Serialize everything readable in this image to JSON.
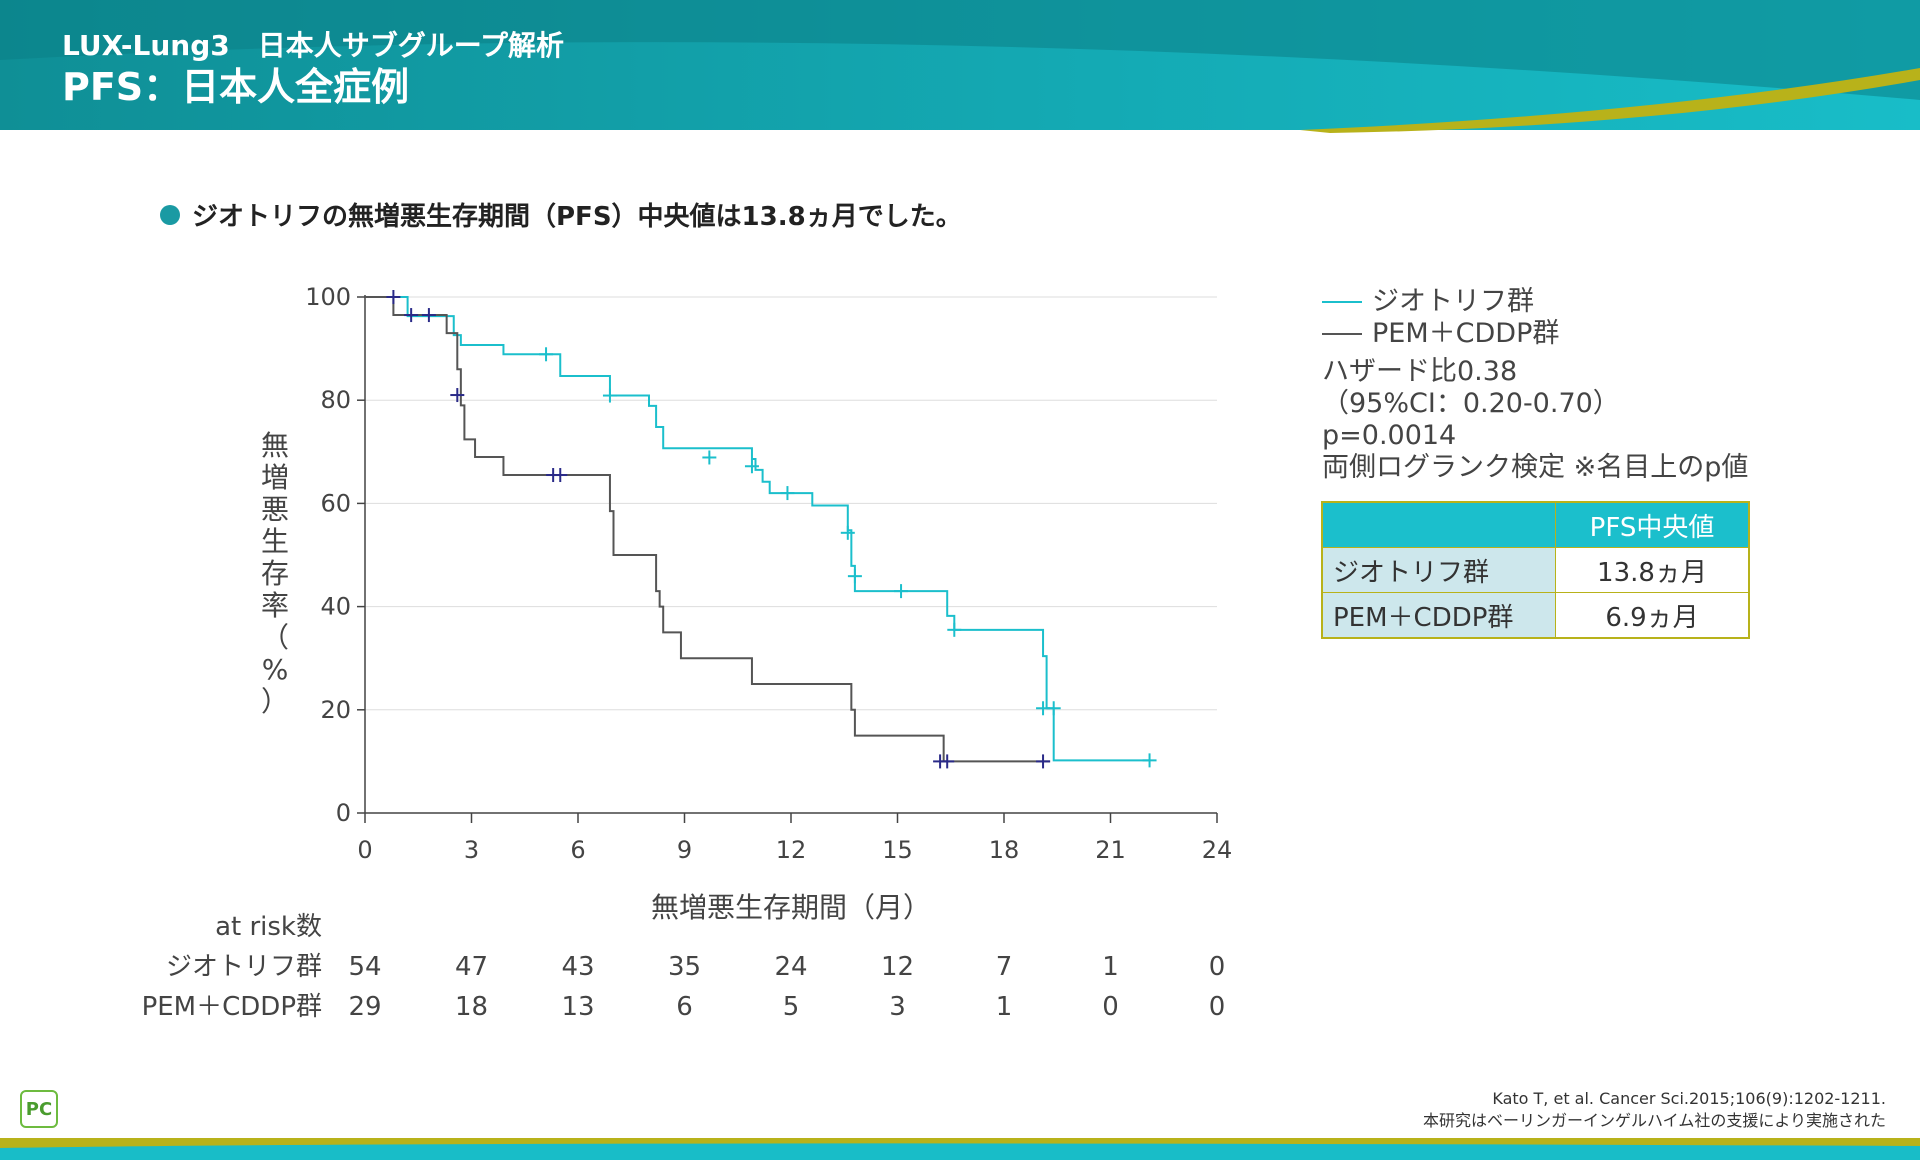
{
  "header": {
    "subtitle": "LUX-Lung3　日本人サブグループ解析",
    "title": "PFS：日本人全症例"
  },
  "bullet": "ジオトリフの無増悪生存期間（PFS）中央値は13.8ヵ月でした。",
  "colors": {
    "afatinib": "#1bbfcc",
    "pem": "#555555",
    "censor_pem": "#2a2a88",
    "accent": "#1a9aa3",
    "olive": "#b8b21a"
  },
  "chart_data": {
    "type": "line",
    "xlabel": "無増悪生存期間（月）",
    "ylabel": "無増悪生存率（%）",
    "xlim": [
      0,
      24
    ],
    "ylim": [
      0,
      100
    ],
    "x_ticks": [
      "0",
      "3",
      "6",
      "9",
      "12",
      "15",
      "18",
      "21",
      "24"
    ],
    "y_ticks": [
      "0",
      "20",
      "40",
      "60",
      "80",
      "100"
    ],
    "grid": "horizontal",
    "series": [
      {
        "name": "ジオトリフ群",
        "steps": [
          [
            0,
            100
          ],
          [
            1.2,
            96.3
          ],
          [
            2.5,
            92.6
          ],
          [
            2.7,
            90.7
          ],
          [
            3.9,
            88.9
          ],
          [
            5.5,
            84.7
          ],
          [
            6.9,
            80.9
          ],
          [
            8.0,
            78.9
          ],
          [
            8.2,
            74.8
          ],
          [
            8.4,
            70.7
          ],
          [
            10.9,
            68.6
          ],
          [
            11.0,
            66.5
          ],
          [
            11.2,
            64.2
          ],
          [
            11.4,
            62.0
          ],
          [
            12.6,
            59.6
          ],
          [
            13.6,
            54.8
          ],
          [
            13.7,
            47.9
          ],
          [
            13.8,
            43.0
          ],
          [
            16.4,
            38.2
          ],
          [
            16.6,
            35.5
          ],
          [
            19.1,
            30.4
          ],
          [
            19.2,
            20.3
          ],
          [
            19.4,
            10.2
          ],
          [
            22.1,
            10.2
          ]
        ],
        "censor": [
          [
            5.1,
            88.9
          ],
          [
            6.9,
            80.9
          ],
          [
            9.7,
            68.9
          ],
          [
            10.9,
            67.2
          ],
          [
            11.9,
            62.0
          ],
          [
            13.6,
            54.3
          ],
          [
            13.8,
            45.9
          ],
          [
            15.1,
            43.0
          ],
          [
            16.6,
            35.5
          ],
          [
            19.1,
            20.3
          ],
          [
            19.4,
            20.3
          ],
          [
            22.1,
            10.2
          ]
        ]
      },
      {
        "name": "PEM＋CDDP群",
        "steps": [
          [
            0,
            100
          ],
          [
            0.8,
            96.5
          ],
          [
            2.3,
            93.0
          ],
          [
            2.6,
            86.0
          ],
          [
            2.7,
            79.0
          ],
          [
            2.8,
            72.4
          ],
          [
            3.1,
            69.0
          ],
          [
            3.9,
            65.5
          ],
          [
            6.9,
            58.5
          ],
          [
            7.0,
            50.0
          ],
          [
            8.2,
            43.0
          ],
          [
            8.3,
            40.0
          ],
          [
            8.4,
            35.0
          ],
          [
            8.9,
            30.0
          ],
          [
            10.9,
            25.0
          ],
          [
            13.7,
            20.0
          ],
          [
            13.8,
            15.0
          ],
          [
            16.3,
            10.0
          ],
          [
            19.3,
            10.0
          ]
        ],
        "censor": [
          [
            0.8,
            100
          ],
          [
            1.3,
            96.5
          ],
          [
            1.8,
            96.5
          ],
          [
            2.6,
            81.0
          ],
          [
            5.3,
            65.5
          ],
          [
            5.5,
            65.5
          ],
          [
            16.2,
            10.0
          ],
          [
            16.4,
            10.0
          ],
          [
            19.1,
            10.0
          ]
        ]
      }
    ],
    "at_risk_label": "at risk数",
    "at_risk_times": [
      "0",
      "3",
      "6",
      "9",
      "12",
      "15",
      "18",
      "21",
      "24"
    ],
    "at_risk": [
      {
        "label": "ジオトリフ群",
        "values": [
          "54",
          "47",
          "43",
          "35",
          "24",
          "12",
          "7",
          "1",
          "0"
        ]
      },
      {
        "label": "PEM＋CDDP群",
        "values": [
          "29",
          "18",
          "13",
          "6",
          "5",
          "3",
          "1",
          "0",
          "0"
        ]
      }
    ]
  },
  "legend": {
    "items": [
      "ジオトリフ群",
      "PEM＋CDDP群"
    ],
    "stats": [
      "ハザード比0.38",
      "（95%CI：0.20-0.70）",
      "p=0.0014",
      "両側ログランク検定 ※名目上のp値"
    ]
  },
  "median_table": {
    "header": "PFS中央値",
    "rows": [
      {
        "group": "ジオトリフ群",
        "value": "13.8ヵ月"
      },
      {
        "group": "PEM＋CDDP群",
        "value": "6.9ヵ月"
      }
    ]
  },
  "citation": {
    "line1": "Kato T, et al. Cancer Sci.2015;106(9):1202-1211.",
    "line2": "本研究はベーリンガーインゲルハイム社の支援により実施された"
  },
  "logo_text": "PC"
}
